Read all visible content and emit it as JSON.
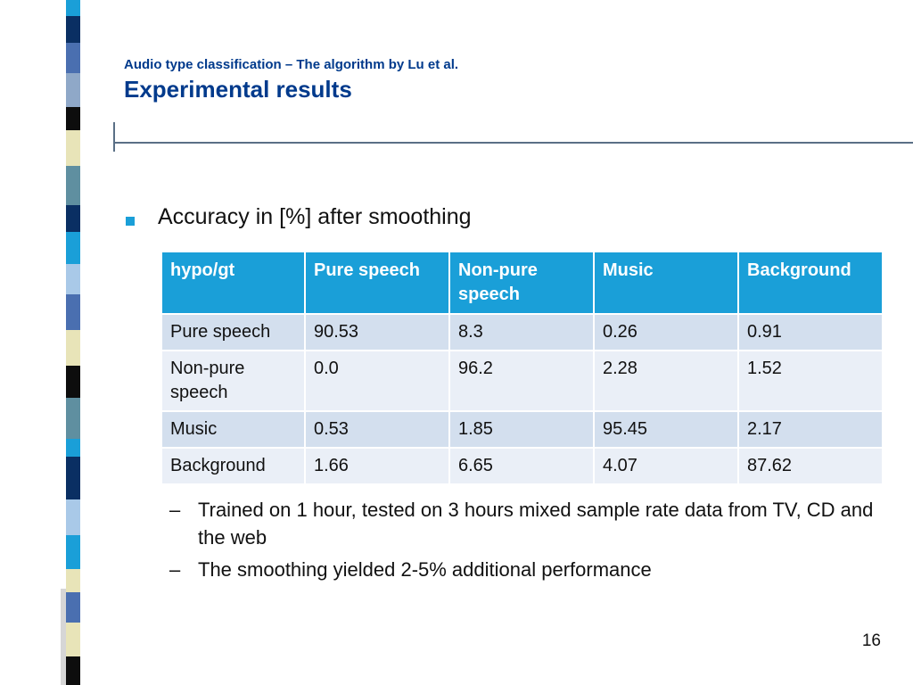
{
  "slide": {
    "subtitle": "Audio type classification – The algorithm by Lu et al.",
    "title": "Experimental results",
    "bullet": "Accuracy in [%] after smoothing",
    "page_number": "16"
  },
  "table": {
    "headers": [
      "hypo/gt",
      "Pure speech",
      "Non-pure speech",
      "Music",
      "Background"
    ],
    "rows": [
      [
        "Pure speech",
        "90.53",
        "8.3",
        "0.26",
        "0.91"
      ],
      [
        "Non-pure speech",
        "0.0",
        "96.2",
        "2.28",
        "1.52"
      ],
      [
        "Music",
        "0.53",
        "1.85",
        "95.45",
        "2.17"
      ],
      [
        "Background",
        "1.66",
        "6.65",
        "4.07",
        "87.62"
      ]
    ]
  },
  "sub_bullets": {
    "dash": "–",
    "items": [
      "Trained on 1 hour, tested on 3 hours mixed sample rate data from TV, CD and the web",
      "The smoothing yielded 2-5% additional performance"
    ]
  },
  "colors": {
    "title": "#003a8c",
    "table_header": "#1a9fd8",
    "row_odd": "#d3dfee",
    "row_even": "#eaeff7",
    "bullet": "#1a9fd8",
    "stripe": [
      "#0a2f63",
      "#1a9fd8",
      "#4a6fb0",
      "#e8e4b8",
      "#0d0d0d",
      "#8fa8c8",
      "#5f8fa0",
      "#a9c9e8"
    ]
  }
}
